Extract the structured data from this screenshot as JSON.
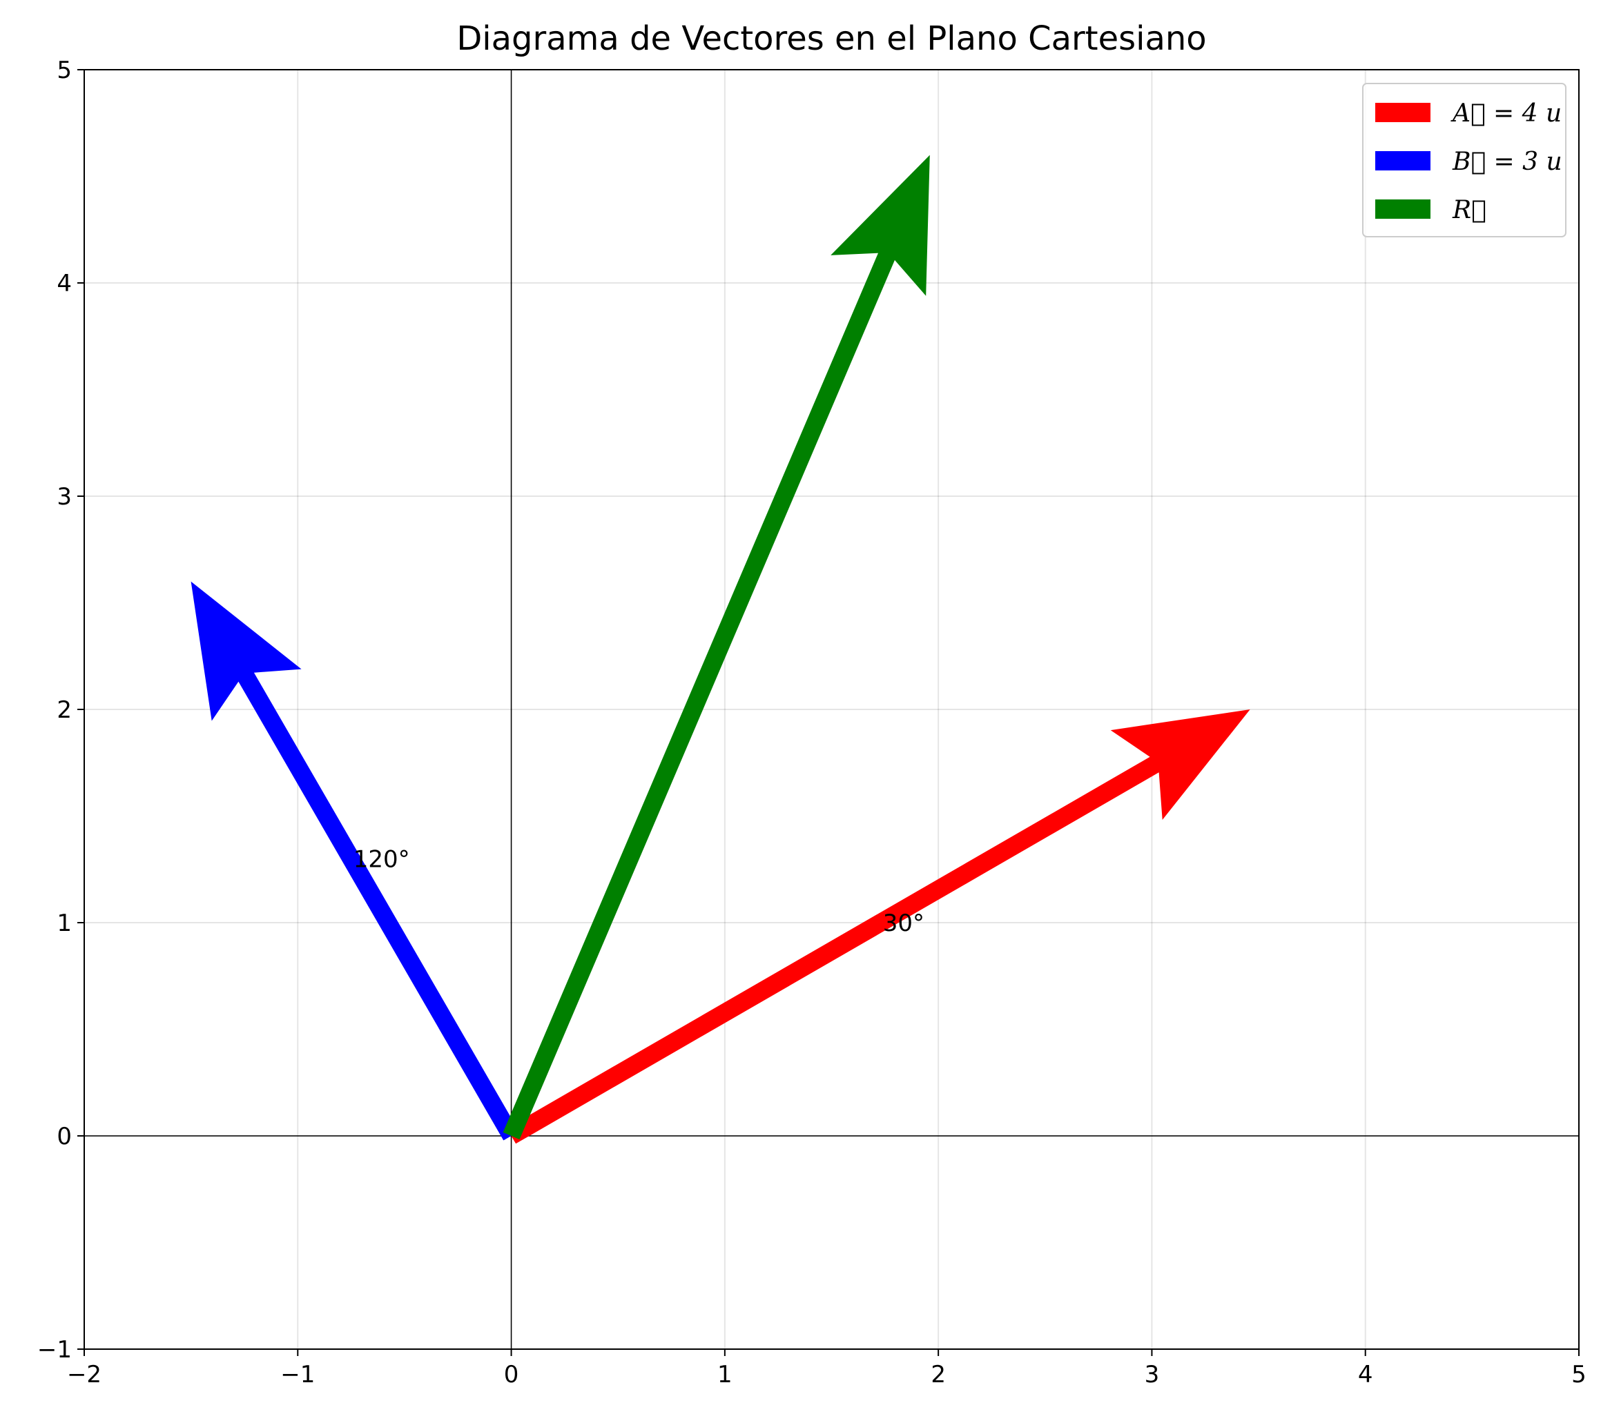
{
  "chart_data": {
    "type": "vector",
    "title": "Diagrama de Vectores en el Plano Cartesiano",
    "xlabel": "",
    "ylabel": "",
    "xlim": [
      -2,
      5
    ],
    "ylim": [
      -1,
      5
    ],
    "x_ticks": [
      -2,
      -1,
      0,
      1,
      2,
      3,
      4,
      5
    ],
    "y_ticks": [
      -1,
      0,
      1,
      2,
      3,
      4,
      5
    ],
    "x_tick_labels": [
      "−2",
      "−1",
      "0",
      "1",
      "2",
      "3",
      "4",
      "5"
    ],
    "y_tick_labels": [
      "−1",
      "0",
      "1",
      "2",
      "3",
      "4",
      "5"
    ],
    "grid": true,
    "legend_position": "top-right",
    "series": [
      {
        "name": "A⃗ = 4 u",
        "x0": 0,
        "y0": 0,
        "x1": 3.46,
        "y1": 2.0,
        "color": "#ff0000",
        "angle_label": "30°",
        "angle_label_pos": [
          1.74,
          1.0
        ]
      },
      {
        "name": "B⃗ = 3 u",
        "x0": 0,
        "y0": 0,
        "x1": -1.5,
        "y1": 2.6,
        "color": "#0000ff",
        "angle_label": "120°",
        "angle_label_pos": [
          -0.74,
          1.3
        ]
      },
      {
        "name": "R⃗",
        "x0": 0,
        "y0": 0,
        "x1": 1.96,
        "y1": 4.6,
        "color": "#008000"
      }
    ]
  }
}
